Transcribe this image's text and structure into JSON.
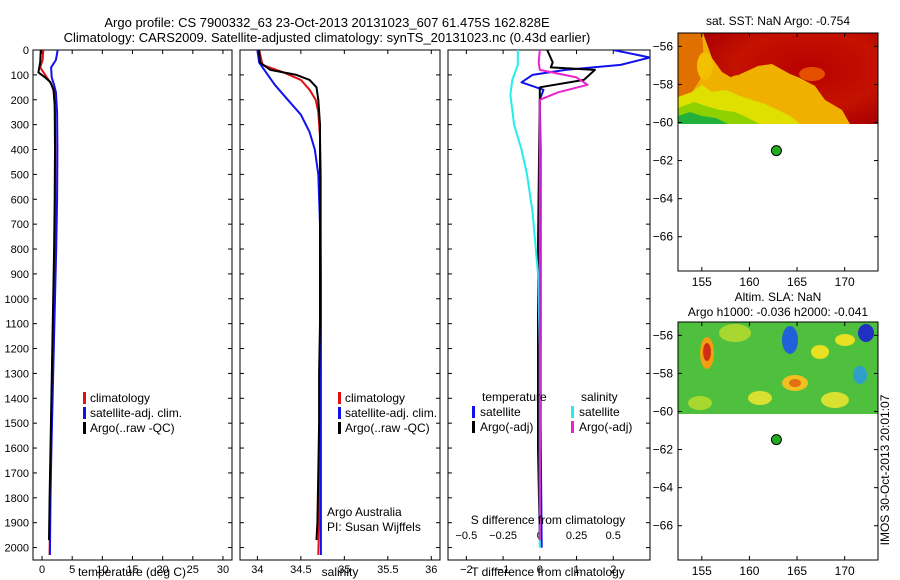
{
  "title_line1": "Argo profile: CS 7900332_63 23-Oct-2013 20131023_607 61.475S 162.828E",
  "title_line2": "Climatology: CARS2009. Satellite-adjusted climatology: synTS_20131023.nc (0.43d earlier)",
  "side_stamp": "IMOS 30-Oct-2013 20:01:07",
  "colors": {
    "climatology": "#dd1111",
    "satellite": "#1111ee",
    "argo": "#000000",
    "cyan": "#22eeee",
    "magenta": "#ee22cc"
  },
  "chart_data": [
    {
      "type": "line",
      "id": "temperature",
      "xlabel": "temperature (deg C)",
      "xlim": [
        -1.5,
        31.5
      ],
      "ylim": [
        0,
        2050
      ],
      "y_reversed": true,
      "xticks": [
        0,
        5,
        10,
        15,
        20,
        25,
        30
      ],
      "yticks": [
        0,
        100,
        200,
        300,
        400,
        500,
        600,
        700,
        800,
        900,
        1000,
        1100,
        1200,
        1300,
        1400,
        1500,
        1600,
        1700,
        1800,
        1900,
        2000
      ],
      "legend": {
        "position": "lower-right",
        "entries": [
          "climatology",
          "satellite-adj. clim.",
          "Argo(..raw -QC)"
        ]
      },
      "series": [
        {
          "name": "climatology",
          "color": "#dd1111",
          "points": [
            [
              0.2,
              0
            ],
            [
              0.1,
              40
            ],
            [
              -0.3,
              70
            ],
            [
              0.8,
              110
            ],
            [
              1.6,
              140
            ],
            [
              2.0,
              170
            ],
            [
              2.15,
              250
            ],
            [
              2.2,
              400
            ],
            [
              2.2,
              600
            ],
            [
              2.15,
              800
            ],
            [
              2.0,
              1000
            ],
            [
              1.85,
              1200
            ],
            [
              1.7,
              1400
            ],
            [
              1.5,
              1600
            ],
            [
              1.35,
              1800
            ],
            [
              1.25,
              2030
            ]
          ]
        },
        {
          "name": "satellite-adj. clim.",
          "color": "#1111ee",
          "points": [
            [
              2.6,
              0
            ],
            [
              2.3,
              40
            ],
            [
              1.5,
              70
            ],
            [
              1.6,
              110
            ],
            [
              2.0,
              140
            ],
            [
              2.3,
              170
            ],
            [
              2.5,
              250
            ],
            [
              2.55,
              400
            ],
            [
              2.5,
              600
            ],
            [
              2.35,
              800
            ],
            [
              2.15,
              1000
            ],
            [
              1.95,
              1200
            ],
            [
              1.75,
              1400
            ],
            [
              1.55,
              1600
            ],
            [
              1.4,
              1800
            ],
            [
              1.3,
              2030
            ]
          ]
        },
        {
          "name": "Argo(..raw -QC)",
          "color": "#000000",
          "points": [
            [
              -0.2,
              0
            ],
            [
              -0.3,
              50
            ],
            [
              -0.6,
              90
            ],
            [
              0.5,
              110
            ],
            [
              1.4,
              130
            ],
            [
              1.9,
              160
            ],
            [
              2.1,
              220
            ],
            [
              2.15,
              400
            ],
            [
              2.1,
              600
            ],
            [
              2.0,
              800
            ],
            [
              1.85,
              1000
            ],
            [
              1.7,
              1200
            ],
            [
              1.55,
              1400
            ],
            [
              1.4,
              1600
            ],
            [
              1.25,
              1800
            ],
            [
              1.15,
              1970
            ]
          ]
        }
      ]
    },
    {
      "type": "line",
      "id": "salinity",
      "xlabel": "salinity",
      "xlim": [
        33.8,
        36.1
      ],
      "ylim": [
        0,
        2050
      ],
      "y_reversed": true,
      "xticks": [
        34,
        34.5,
        35,
        35.5,
        36
      ],
      "legend": {
        "position": "lower-right",
        "entries": [
          "climatology",
          "satellite-adj. clim.",
          "Argo(..raw -QC)"
        ]
      },
      "annotation": [
        "Argo Australia",
        "PI: Susan Wijffels"
      ],
      "series": [
        {
          "name": "climatology",
          "color": "#dd1111",
          "points": [
            [
              34.02,
              0
            ],
            [
              34.06,
              60
            ],
            [
              34.3,
              90
            ],
            [
              34.5,
              120
            ],
            [
              34.6,
              160
            ],
            [
              34.67,
              200
            ],
            [
              34.7,
              250
            ],
            [
              34.72,
              350
            ],
            [
              34.73,
              500
            ],
            [
              34.73,
              700
            ],
            [
              34.73,
              900
            ],
            [
              34.73,
              1100
            ],
            [
              34.72,
              1300
            ],
            [
              34.72,
              1500
            ],
            [
              34.71,
              1700
            ],
            [
              34.71,
              1900
            ],
            [
              34.7,
              2030
            ]
          ]
        },
        {
          "name": "satellite-adj. clim.",
          "color": "#1111ee",
          "points": [
            [
              34.0,
              0
            ],
            [
              34.02,
              50
            ],
            [
              34.1,
              90
            ],
            [
              34.2,
              140
            ],
            [
              34.35,
              200
            ],
            [
              34.5,
              260
            ],
            [
              34.6,
              330
            ],
            [
              34.66,
              400
            ],
            [
              34.7,
              500
            ],
            [
              34.72,
              700
            ],
            [
              34.73,
              900
            ],
            [
              34.73,
              1100
            ],
            [
              34.73,
              1300
            ],
            [
              34.73,
              1500
            ],
            [
              34.73,
              1700
            ],
            [
              34.73,
              1900
            ],
            [
              34.73,
              2030
            ]
          ]
        },
        {
          "name": "Argo(..raw -QC)",
          "color": "#000000",
          "points": [
            [
              34.02,
              0
            ],
            [
              34.03,
              50
            ],
            [
              34.15,
              80
            ],
            [
              34.45,
              100
            ],
            [
              34.6,
              120
            ],
            [
              34.68,
              150
            ],
            [
              34.7,
              200
            ],
            [
              34.72,
              300
            ],
            [
              34.72,
              500
            ],
            [
              34.72,
              700
            ],
            [
              34.72,
              900
            ],
            [
              34.72,
              1100
            ],
            [
              34.71,
              1300
            ],
            [
              34.71,
              1500
            ],
            [
              34.7,
              1700
            ],
            [
              34.69,
              1900
            ],
            [
              34.68,
              1970
            ]
          ]
        }
      ]
    },
    {
      "type": "line",
      "id": "difference",
      "xlabel": "T difference from climatology",
      "x2label": "S difference from climatology",
      "xlim": [
        -2.5,
        3.0
      ],
      "x2lim": [
        -0.625,
        0.75
      ],
      "ylim": [
        0,
        2050
      ],
      "y_reversed": true,
      "xticks": [
        -2,
        -1,
        0,
        1,
        2
      ],
      "x2ticks": [
        -0.5,
        -0.25,
        0,
        0.25,
        0.5
      ],
      "legend_headers": [
        "temperature",
        "salinity"
      ],
      "legend": {
        "position": "lower-right",
        "entries": [
          "satellite",
          "Argo(-adj)",
          "satellite",
          "Argo(-adj)"
        ]
      },
      "series": [
        {
          "name": "satellite",
          "group": "temperature",
          "color": "#1111ee",
          "points": [
            [
              2.0,
              0
            ],
            [
              3.0,
              30
            ],
            [
              2.2,
              60
            ],
            [
              0.7,
              80
            ],
            [
              -0.2,
              100
            ],
            [
              -0.5,
              130
            ],
            [
              0.1,
              160
            ],
            [
              0.0,
              200
            ],
            [
              0.02,
              400
            ],
            [
              0.02,
              1000
            ],
            [
              0.02,
              1500
            ],
            [
              0.05,
              2000
            ]
          ]
        },
        {
          "name": "Argo(-adj)",
          "group": "temperature",
          "color": "#000000",
          "points": [
            [
              0.2,
              0
            ],
            [
              0.35,
              50
            ],
            [
              0.3,
              70
            ],
            [
              1.5,
              80
            ],
            [
              1.2,
              120
            ],
            [
              0.0,
              150
            ],
            [
              0.0,
              200
            ],
            [
              -0.02,
              400
            ],
            [
              -0.05,
              800
            ],
            [
              -0.05,
              1200
            ],
            [
              -0.05,
              1600
            ],
            [
              0.0,
              1970
            ]
          ]
        },
        {
          "name": "satellite",
          "group": "salinity",
          "color": "#22eeee",
          "points": [
            [
              -0.6,
              0
            ],
            [
              -0.6,
              60
            ],
            [
              -0.75,
              120
            ],
            [
              -0.8,
              180
            ],
            [
              -0.7,
              300
            ],
            [
              -0.5,
              400
            ],
            [
              -0.35,
              500
            ],
            [
              -0.2,
              650
            ],
            [
              -0.05,
              900
            ],
            [
              0.0,
              1200
            ],
            [
              0.0,
              1500
            ],
            [
              0.0,
              2000
            ]
          ]
        },
        {
          "name": "Argo(-adj)",
          "group": "salinity",
          "color": "#ee22cc",
          "points": [
            [
              0.0,
              0
            ],
            [
              -0.03,
              50
            ],
            [
              0.0,
              80
            ],
            [
              1.0,
              110
            ],
            [
              1.3,
              140
            ],
            [
              0.5,
              170
            ],
            [
              0.0,
              200
            ],
            [
              0.0,
              400
            ],
            [
              0.0,
              800
            ],
            [
              0.0,
              1200
            ],
            [
              0.0,
              1600
            ],
            [
              0.0,
              1970
            ]
          ]
        }
      ]
    },
    {
      "type": "heatmap",
      "id": "sst-map",
      "title": "sat. SST: NaN Argo: -0.754",
      "xlim": [
        152.5,
        173.5
      ],
      "ylim": [
        -67.8,
        -55.3
      ],
      "xticks": [
        155,
        160,
        165,
        170
      ],
      "yticks": [
        -56,
        -58,
        -60,
        -62,
        -64,
        -66
      ],
      "data_extent_lat": -60.2,
      "float_position": {
        "lon": 162.828,
        "lat": -61.475
      }
    },
    {
      "type": "heatmap",
      "id": "sla-map",
      "title_line1": "Altim. SLA: NaN",
      "title_line2": "Argo h1000: -0.036 h2000: -0.041",
      "xlim": [
        152.5,
        173.5
      ],
      "ylim": [
        -67.8,
        -55.3
      ],
      "xticks": [
        155,
        160,
        165,
        170
      ],
      "yticks": [
        -56,
        -58,
        -60,
        -62,
        -64,
        -66
      ],
      "data_extent_lat": -60.2,
      "float_position": {
        "lon": 162.828,
        "lat": -61.475
      }
    }
  ]
}
